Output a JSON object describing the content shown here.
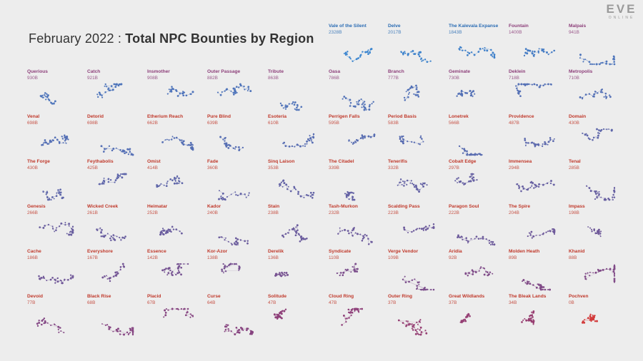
{
  "header": {
    "date_label": "February 2022 : ",
    "title": "Total NPC Bounties by Region"
  },
  "logo": {
    "brand": "EVE",
    "sub": "ONLINE"
  },
  "colors": {
    "background": "#ededed",
    "high": "#3a86d0",
    "mid": "#8d3f7a",
    "low": "#d23a3a",
    "label_high": "#2c6db4",
    "label_low": "#c0392b"
  },
  "chart_data": {
    "type": "small-multiples",
    "title": "Total NPC Bounties by Region",
    "unit": "B",
    "grid": false,
    "regions": [
      {
        "name": "Vale of the Silent",
        "value_label": "2328B",
        "value": 2328
      },
      {
        "name": "Delve",
        "value_label": "2017B",
        "value": 2017
      },
      {
        "name": "The Kalevala Expanse",
        "value_label": "1843B",
        "value": 1843
      },
      {
        "name": "Fountain",
        "value_label": "1400B",
        "value": 1400
      },
      {
        "name": "Malpais",
        "value_label": "941B",
        "value": 941
      },
      {
        "name": "Querious",
        "value_label": "930B",
        "value": 930
      },
      {
        "name": "Catch",
        "value_label": "921B",
        "value": 921
      },
      {
        "name": "Insmother",
        "value_label": "908B",
        "value": 908
      },
      {
        "name": "Outer Passage",
        "value_label": "882B",
        "value": 882
      },
      {
        "name": "Tribute",
        "value_label": "863B",
        "value": 863
      },
      {
        "name": "Oasa",
        "value_label": "786B",
        "value": 786
      },
      {
        "name": "Branch",
        "value_label": "777B",
        "value": 777
      },
      {
        "name": "Geminate",
        "value_label": "730B",
        "value": 730
      },
      {
        "name": "Deklein",
        "value_label": "718B",
        "value": 718
      },
      {
        "name": "Metropolis",
        "value_label": "710B",
        "value": 710
      },
      {
        "name": "Venal",
        "value_label": "698B",
        "value": 698
      },
      {
        "name": "Detorid",
        "value_label": "698B",
        "value": 698
      },
      {
        "name": "Etherium Reach",
        "value_label": "662B",
        "value": 662
      },
      {
        "name": "Pure Blind",
        "value_label": "639B",
        "value": 639
      },
      {
        "name": "Esoteria",
        "value_label": "610B",
        "value": 610
      },
      {
        "name": "Perrigen Falls",
        "value_label": "595B",
        "value": 595
      },
      {
        "name": "Period Basis",
        "value_label": "583B",
        "value": 583
      },
      {
        "name": "Lonetrek",
        "value_label": "566B",
        "value": 566
      },
      {
        "name": "Providence",
        "value_label": "487B",
        "value": 487
      },
      {
        "name": "Domain",
        "value_label": "430B",
        "value": 430
      },
      {
        "name": "The Forge",
        "value_label": "430B",
        "value": 430
      },
      {
        "name": "Feythabolis",
        "value_label": "425B",
        "value": 425
      },
      {
        "name": "Omist",
        "value_label": "414B",
        "value": 414
      },
      {
        "name": "Fade",
        "value_label": "360B",
        "value": 360
      },
      {
        "name": "Sinq Laison",
        "value_label": "353B",
        "value": 353
      },
      {
        "name": "The Citadel",
        "value_label": "339B",
        "value": 339
      },
      {
        "name": "Tenerifis",
        "value_label": "332B",
        "value": 332
      },
      {
        "name": "Cobalt Edge",
        "value_label": "297B",
        "value": 297
      },
      {
        "name": "Immensea",
        "value_label": "294B",
        "value": 294
      },
      {
        "name": "Tenal",
        "value_label": "285B",
        "value": 285
      },
      {
        "name": "Genesis",
        "value_label": "266B",
        "value": 266
      },
      {
        "name": "Wicked Creek",
        "value_label": "261B",
        "value": 261
      },
      {
        "name": "Heimatar",
        "value_label": "252B",
        "value": 252
      },
      {
        "name": "Kador",
        "value_label": "240B",
        "value": 240
      },
      {
        "name": "Stain",
        "value_label": "238B",
        "value": 238
      },
      {
        "name": "Tash-Murkon",
        "value_label": "232B",
        "value": 232
      },
      {
        "name": "Scalding Pass",
        "value_label": "223B",
        "value": 223
      },
      {
        "name": "Paragon Soul",
        "value_label": "222B",
        "value": 222
      },
      {
        "name": "The Spire",
        "value_label": "204B",
        "value": 204
      },
      {
        "name": "Impass",
        "value_label": "198B",
        "value": 198
      },
      {
        "name": "Cache",
        "value_label": "186B",
        "value": 186
      },
      {
        "name": "Everyshore",
        "value_label": "167B",
        "value": 167
      },
      {
        "name": "Essence",
        "value_label": "142B",
        "value": 142
      },
      {
        "name": "Kor-Azor",
        "value_label": "138B",
        "value": 138
      },
      {
        "name": "Derelik",
        "value_label": "136B",
        "value": 136
      },
      {
        "name": "Syndicate",
        "value_label": "110B",
        "value": 110
      },
      {
        "name": "Verge Vendor",
        "value_label": "109B",
        "value": 109
      },
      {
        "name": "Aridia",
        "value_label": "92B",
        "value": 92
      },
      {
        "name": "Molden Heath",
        "value_label": "89B",
        "value": 89
      },
      {
        "name": "Khanid",
        "value_label": "88B",
        "value": 88
      },
      {
        "name": "Devoid",
        "value_label": "77B",
        "value": 77
      },
      {
        "name": "Black Rise",
        "value_label": "68B",
        "value": 68
      },
      {
        "name": "Placid",
        "value_label": "67B",
        "value": 67
      },
      {
        "name": "Curse",
        "value_label": "64B",
        "value": 64
      },
      {
        "name": "Solitude",
        "value_label": "47B",
        "value": 47
      },
      {
        "name": "Cloud Ring",
        "value_label": "47B",
        "value": 47
      },
      {
        "name": "Outer Ring",
        "value_label": "37B",
        "value": 37
      },
      {
        "name": "Great Wildlands",
        "value_label": "37B",
        "value": 37
      },
      {
        "name": "The Bleak Lands",
        "value_label": "34B",
        "value": 34
      },
      {
        "name": "Pochven",
        "value_label": "0B",
        "value": 0
      }
    ]
  }
}
